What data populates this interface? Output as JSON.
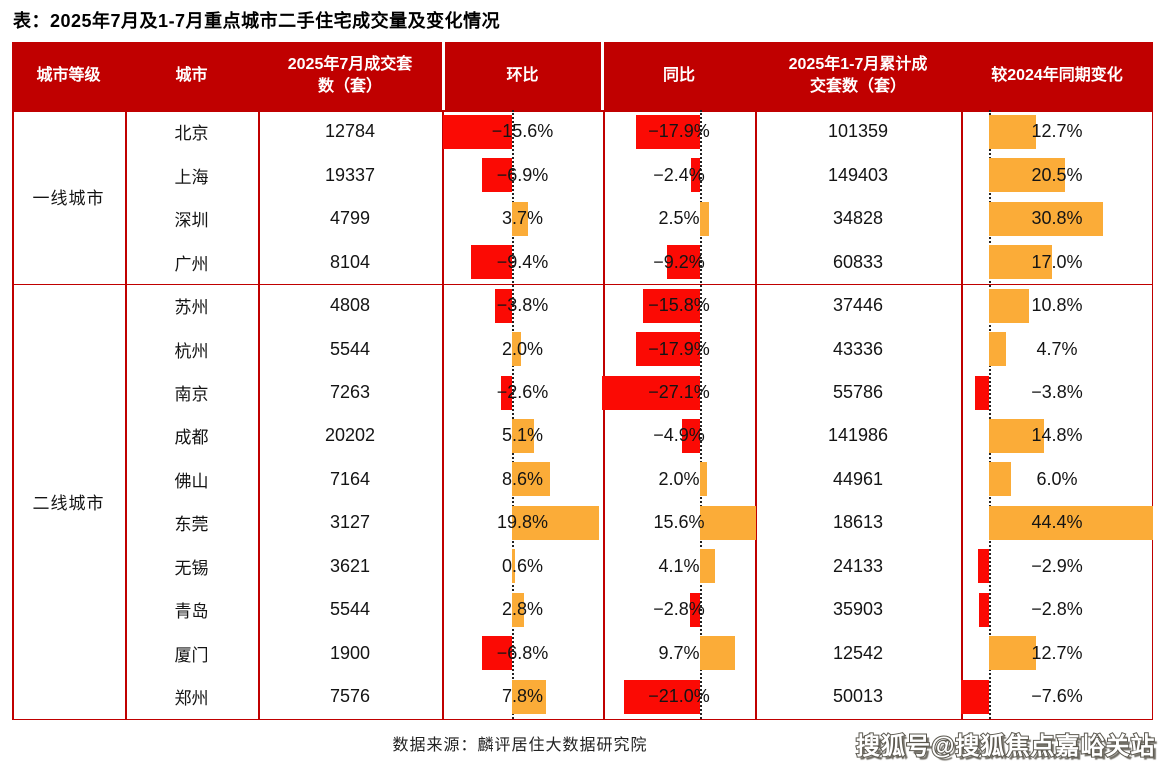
{
  "title": "表：2025年7月及1-7月重点城市二手住宅成交量及变化情况",
  "header_labels": [
    "城市等级",
    "城市",
    "2025年7月成交套\n数（套）",
    "环比",
    "同比",
    "2025年1-7月累计成\n交套数（套）",
    "较2024年同期变化"
  ],
  "footer": {
    "source": "数据来源：麟评居住大数据研究院"
  },
  "watermark": "搜狐号@搜狐焦点嘉峪关站",
  "colors": {
    "header_bg": "#c00000",
    "grid": "#c00000",
    "bar_negative": "#fb0a04",
    "bar_positive": "#fbac38",
    "header_text": "#ffffff"
  },
  "chart_data": {
    "type": "table",
    "title": "表：2025年7月及1-7月重点城市二手住宅成交量及变化情况",
    "columns": [
      "城市等级",
      "城市",
      "2025年7月成交套数（套）",
      "环比",
      "同比",
      "2025年1-7月累计成交套数（套）",
      "较2024年同期变化"
    ],
    "bar_columns": [
      "环比",
      "同比",
      "较2024年同期变化"
    ],
    "bar_color_rule": "negative=red, positive=orange, zero axis dotted line",
    "groups": [
      {
        "tier": "一线城市",
        "rows": [
          {
            "city": "北京",
            "jul_units": 12784,
            "mom_pct": -15.6,
            "yoy_pct": -17.9,
            "cum_units": 101359,
            "chg_pct": 12.7
          },
          {
            "city": "上海",
            "jul_units": 19337,
            "mom_pct": -6.9,
            "yoy_pct": -2.4,
            "cum_units": 149403,
            "chg_pct": 20.5
          },
          {
            "city": "深圳",
            "jul_units": 4799,
            "mom_pct": 3.7,
            "yoy_pct": 2.5,
            "cum_units": 34828,
            "chg_pct": 30.8
          },
          {
            "city": "广州",
            "jul_units": 8104,
            "mom_pct": -9.4,
            "yoy_pct": -9.2,
            "cum_units": 60833,
            "chg_pct": 17.0
          }
        ]
      },
      {
        "tier": "二线城市",
        "rows": [
          {
            "city": "苏州",
            "jul_units": 4808,
            "mom_pct": -3.8,
            "yoy_pct": -15.8,
            "cum_units": 37446,
            "chg_pct": 10.8
          },
          {
            "city": "杭州",
            "jul_units": 5544,
            "mom_pct": 2.0,
            "yoy_pct": -17.9,
            "cum_units": 43336,
            "chg_pct": 4.7
          },
          {
            "city": "南京",
            "jul_units": 7263,
            "mom_pct": -2.6,
            "yoy_pct": -27.1,
            "cum_units": 55786,
            "chg_pct": -3.8
          },
          {
            "city": "成都",
            "jul_units": 20202,
            "mom_pct": 5.1,
            "yoy_pct": -4.9,
            "cum_units": 141986,
            "chg_pct": 14.8
          },
          {
            "city": "佛山",
            "jul_units": 7164,
            "mom_pct": 8.6,
            "yoy_pct": 2.0,
            "cum_units": 44961,
            "chg_pct": 6.0
          },
          {
            "city": "东莞",
            "jul_units": 3127,
            "mom_pct": 19.8,
            "yoy_pct": 15.6,
            "cum_units": 18613,
            "chg_pct": 44.4
          },
          {
            "city": "无锡",
            "jul_units": 3621,
            "mom_pct": 0.6,
            "yoy_pct": 4.1,
            "cum_units": 24133,
            "chg_pct": -2.9
          },
          {
            "city": "青岛",
            "jul_units": 5544,
            "mom_pct": 2.8,
            "yoy_pct": -2.8,
            "cum_units": 35903,
            "chg_pct": -2.8
          },
          {
            "city": "厦门",
            "jul_units": 1900,
            "mom_pct": -6.8,
            "yoy_pct": 9.7,
            "cum_units": 12542,
            "chg_pct": 12.7
          },
          {
            "city": "郑州",
            "jul_units": 7576,
            "mom_pct": 7.8,
            "yoy_pct": -21.0,
            "cum_units": 50013,
            "chg_pct": -7.6
          }
        ]
      }
    ]
  }
}
